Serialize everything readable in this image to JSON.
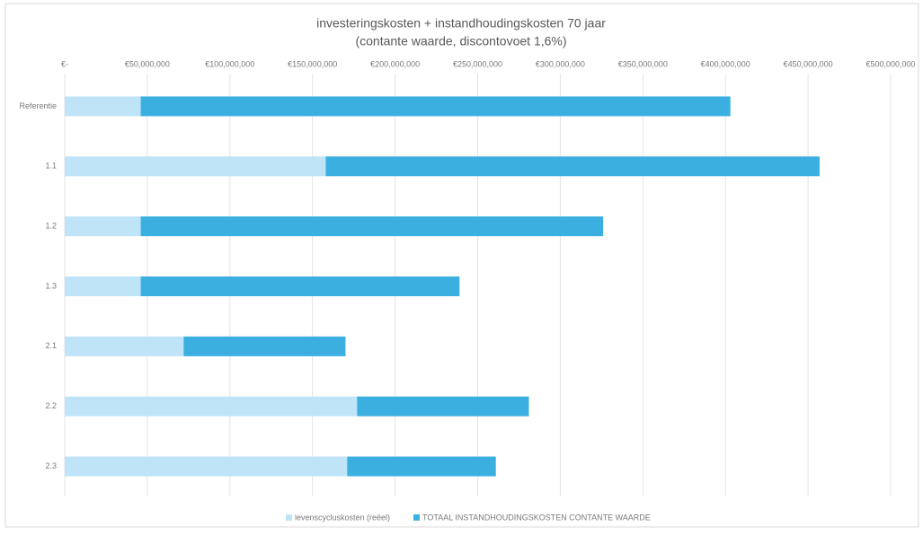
{
  "chart_data": {
    "type": "stacked-barh",
    "title": "investeringskosten + instandhoudingskosten 70 jaar",
    "subtitle": "(contante waarde, discontovoet 1,6%)",
    "categories": [
      "Referentie",
      "1.1",
      "1.2",
      "1.3",
      "2.1",
      "2.2",
      "2.3"
    ],
    "series": [
      {
        "name": "levenscycluskosten (reëel)",
        "color": "#bfe4f7",
        "values": [
          46000000,
          158000000,
          46000000,
          46000000,
          72000000,
          177000000,
          171000000
        ]
      },
      {
        "name": "TOTAAL INSTANDHOUDINGSKOSTEN CONTANTE WAARDE",
        "color": "#3cafe1",
        "values": [
          357000000,
          299000000,
          280000000,
          193000000,
          98000000,
          104000000,
          90000000
        ]
      }
    ],
    "xlim": [
      0,
      500000000
    ],
    "xticks": [
      {
        "value": 0,
        "label": "€-"
      },
      {
        "value": 50000000,
        "label": "€50,000,000"
      },
      {
        "value": 100000000,
        "label": "€100,000,000"
      },
      {
        "value": 150000000,
        "label": "€150,000,000"
      },
      {
        "value": 200000000,
        "label": "€200,000,000"
      },
      {
        "value": 250000000,
        "label": "€250,000,000"
      },
      {
        "value": 300000000,
        "label": "€300,000,000"
      },
      {
        "value": 350000000,
        "label": "€350,000,000"
      },
      {
        "value": 400000000,
        "label": "€400,000,000"
      },
      {
        "value": 450000000,
        "label": "€450,000,000"
      },
      {
        "value": 500000000,
        "label": "€500,000,000"
      }
    ],
    "grid": true,
    "legend": "bottom"
  }
}
